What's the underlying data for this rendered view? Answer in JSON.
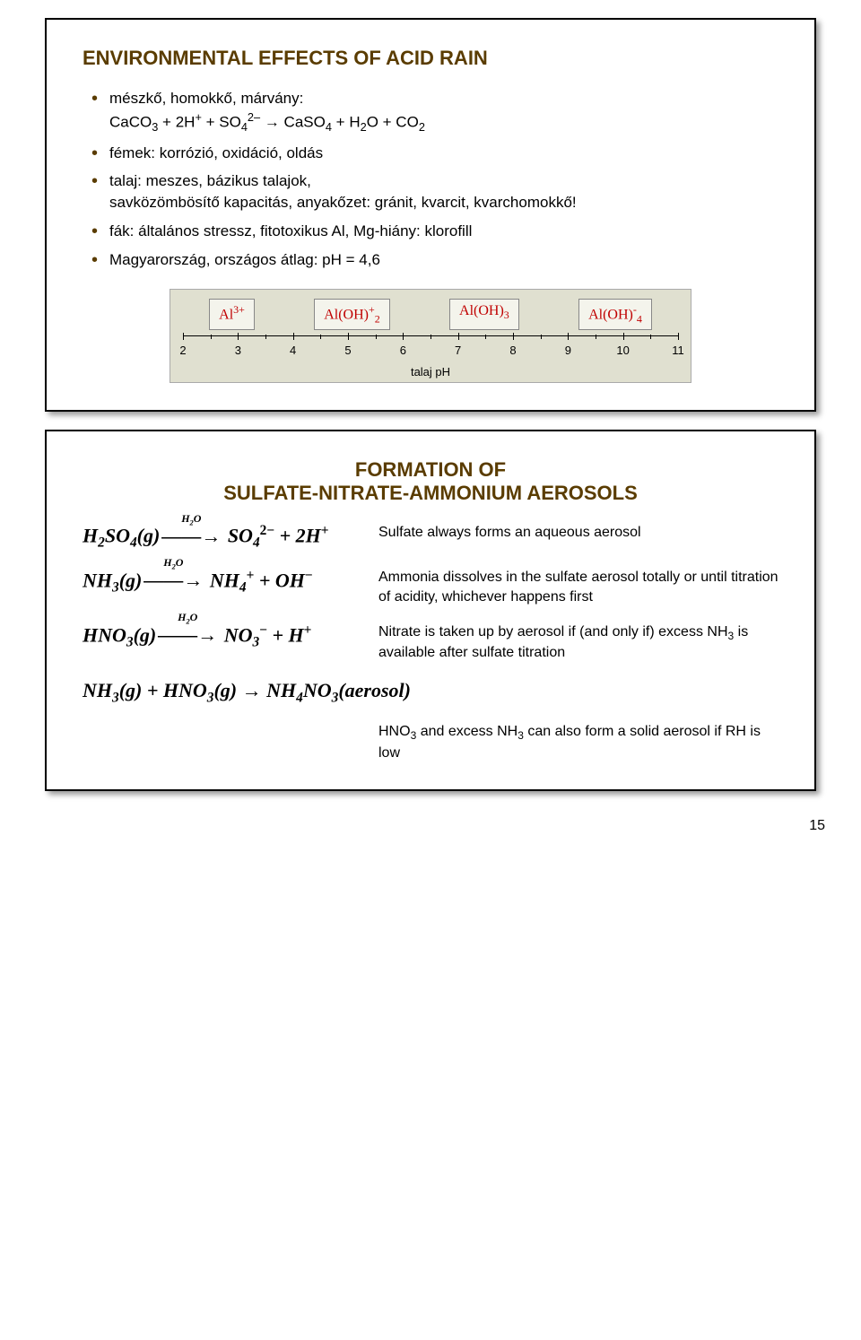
{
  "page_number": "15",
  "slide1": {
    "title": "ENVIRONMENTAL EFFECTS OF ACID RAIN",
    "title_color": "#5a3c00",
    "bullets": [
      "mészkő, homokkő, márvány:<br>CaCO<span class='sub'>3</span> + 2H<span class='sup'>+</span> + SO<span class='sub'>4</span><span class='sup'>2–</span> → CaSO<span class='sub'>4</span> + H<span class='sub'>2</span>O + CO<span class='sub'>2</span>",
      "fémek: korrózió, oxidáció, oldás",
      "talaj: meszes, bázikus talajok,<br>savközömbösítő kapacitás, anyakőzet: gránit, kvarcit, kvarchomokkő!",
      "fák: általános stressz, fitotoxikus Al, Mg-hiány: klorofill",
      "Magyarország, országos átlag: pH = 4,6"
    ],
    "chart": {
      "background": "#e0e0d0",
      "species_color": "#c00000",
      "species": [
        "Al<span class='sup'>3+</span>",
        "Al(OH)<span class='sup'>+</span><span class='sub'>2</span>",
        "Al(OH)<span class='sub'>3</span>",
        "Al(OH)<span class='sup'>-</span><span class='sub'>4</span>"
      ],
      "ticks": [
        2,
        3,
        4,
        5,
        6,
        7,
        8,
        9,
        10,
        11
      ],
      "axis_label": "talaj pH"
    }
  },
  "slide2": {
    "title": "FORMATION OF<br>SULFATE-NITRATE-AMMONIUM AEROSOLS",
    "title_color": "#5a3c00",
    "rows": [
      {
        "eq": "H<span class='esub'>2</span>SO<span class='esub'>4</span>(g)<span class='arrow'><span class='top'>H<span class=\"esub\">2</span>O</span>——→</span> SO<span class='esub'>4</span><span class='esup'>2−</span> + 2H<span class='esup'>+</span>",
        "desc": "Sulfate always forms an aqueous aerosol"
      },
      {
        "eq": "NH<span class='esub'>3</span>(g)<span class='arrow'><span class='top'>H<span class=\"esub\">2</span>O</span>——→</span> NH<span class='esub'>4</span><span class='esup'>+</span> + OH<span class='esup'>−</span>",
        "desc": "Ammonia dissolves in the sulfate aerosol totally or until titration of acidity, whichever happens first"
      },
      {
        "eq": "HNO<span class='esub'>3</span>(g)<span class='arrow'><span class='top'>H<span class=\"esub\">2</span>O</span>——→</span> NO<span class='esub'>3</span><span class='esup'>−</span> + H<span class='esup'>+</span>",
        "desc": "Nitrate is taken up by aerosol if (and only if) excess NH<span class='sub'>3</span> is available after sulfate titration"
      }
    ],
    "eq_full": "NH<span class='esub'>3</span>(g) + HNO<span class='esub'>3</span>(g) → NH<span class='esub'>4</span>NO<span class='esub'>3</span>(aerosol)",
    "footer_desc": "HNO<span class='sub'>3</span> and excess NH<span class='sub'>3</span> can also form a solid aerosol if RH is low"
  }
}
